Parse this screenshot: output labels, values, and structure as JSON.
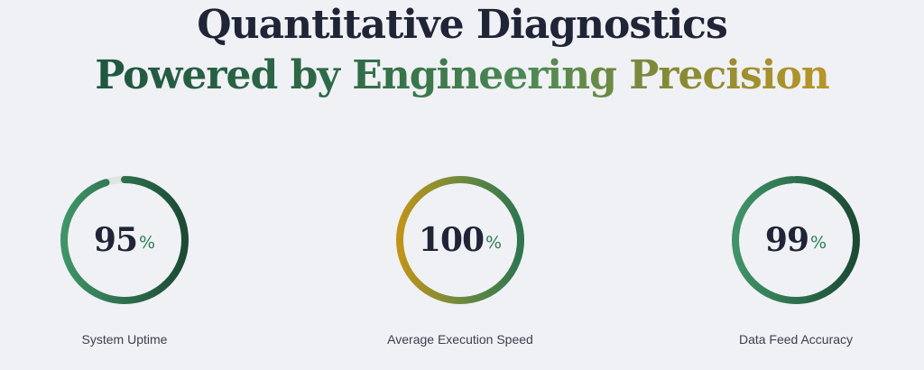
{
  "heading": {
    "line1": "Quantitative Diagnostics",
    "line2": "Powered by Engineering Precision"
  },
  "colors": {
    "background": "#f0f1f5",
    "heading": "#1f2536",
    "green_light": "#3f9468",
    "green_dark": "#1c4a33",
    "gold": "#c09419",
    "percent": "#2f7d56"
  },
  "stats": [
    {
      "value": "95",
      "unit": "%",
      "label": "System Uptime",
      "fill_percent": 95,
      "gradient": "green"
    },
    {
      "value": "100",
      "unit": "%",
      "label": "Average Execution Speed",
      "fill_percent": 100,
      "gradient": "gold"
    },
    {
      "value": "99",
      "unit": "%",
      "label": "Data Feed Accuracy",
      "fill_percent": 99,
      "gradient": "green"
    }
  ]
}
